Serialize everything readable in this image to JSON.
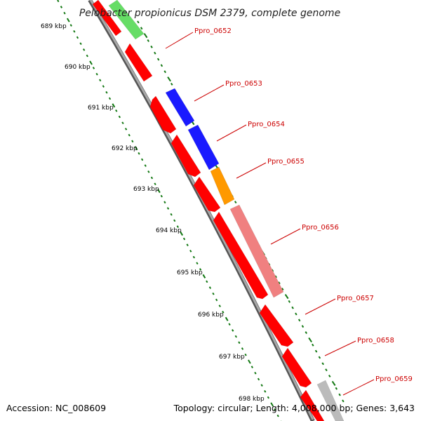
{
  "title": "Pelobacter propionicus DSM 2379, complete genome",
  "footer": {
    "accession": "Accession: NC_008609",
    "summary": "Topology: circular; Length: 4,008,000 bp; Genes: 3,643"
  },
  "kbp_labels": [
    "689 kbp",
    "690 kbp",
    "691 kbp",
    "692 kbp",
    "693 kbp",
    "694 kbp",
    "695 kbp",
    "696 kbp",
    "697 kbp",
    "698 kbp"
  ],
  "gene_labels": [
    "Ppro_0652",
    "Ppro_0653",
    "Ppro_0654",
    "Ppro_0655",
    "Ppro_0656",
    "Ppro_0657",
    "Ppro_0658",
    "Ppro_0659"
  ],
  "colors": {
    "reverse_gene": "#ff0000",
    "forward_blue": "#1a1aff",
    "forward_orange": "#ff9900",
    "forward_pink": "#f08080",
    "forward_green": "#66dd66",
    "forward_gray": "#bbbbbb",
    "backbone": "#888888",
    "tick": "#117711",
    "label": "#cc0000"
  }
}
